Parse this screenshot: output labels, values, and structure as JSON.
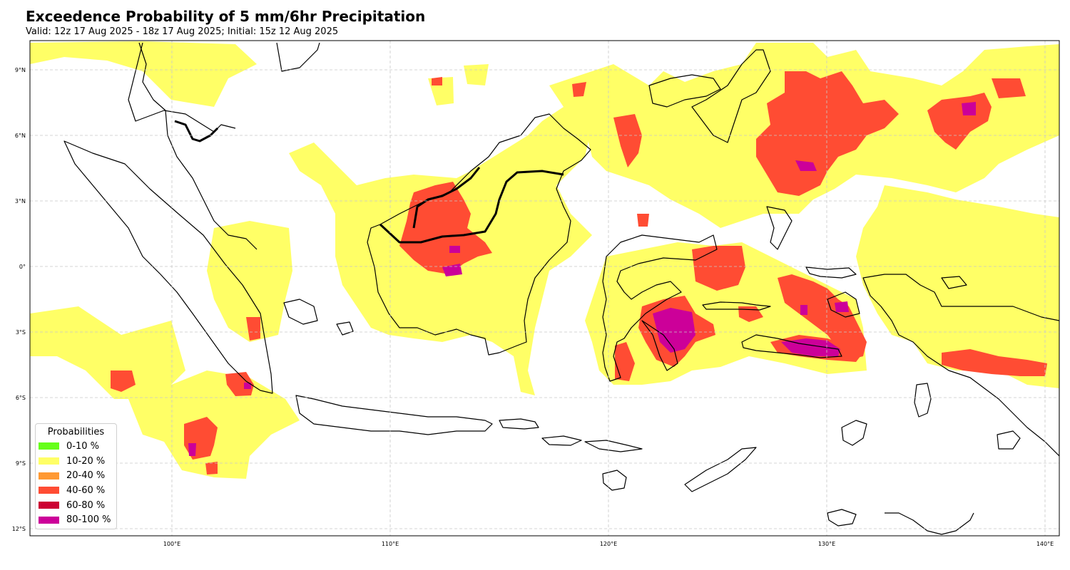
{
  "title": "Exceedence Probability of 5 mm/6hr Precipitation",
  "subtitle": "Valid: 12z 17 Aug 2025 - 18z 17 Aug 2025; Initial: 15z 12 Aug 2025",
  "map": {
    "projection": "PlateCarree",
    "lon_range": [
      93.5,
      141.0
    ],
    "lat_range": [
      -12.3,
      10.4
    ],
    "gridlines": true,
    "lon_ticks": [
      "100°E",
      "110°E",
      "120°E",
      "130°E",
      "140°E"
    ],
    "lat_ticks": [
      "9°N",
      "6°N",
      "3°N",
      "0°",
      "3°S",
      "6°S",
      "9°S",
      "12°S"
    ],
    "coastline_color": "#000000"
  },
  "legend": {
    "title": "Probabilities",
    "placement": "lower-left",
    "items": [
      {
        "label": "0-10 %",
        "color": "#66ff19"
      },
      {
        "label": "10-20 %",
        "color": "#ffff66"
      },
      {
        "label": "20-40 %",
        "color": "#ff9933"
      },
      {
        "label": "40-60 %",
        "color": "#ff4c33"
      },
      {
        "label": "60-80 %",
        "color": "#cc0033"
      },
      {
        "label": "80-100 %",
        "color": "#cc0099"
      }
    ]
  }
}
